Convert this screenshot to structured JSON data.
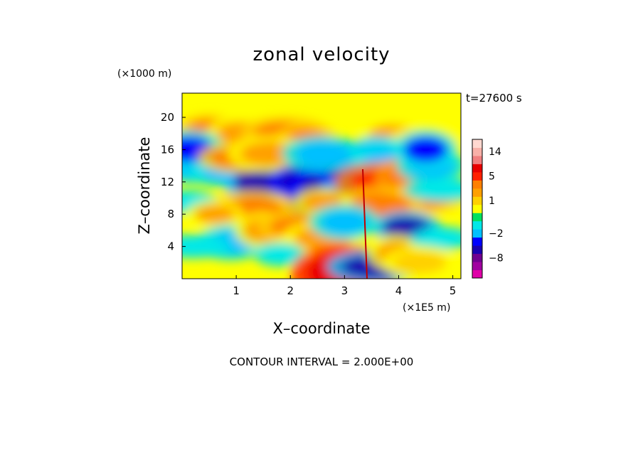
{
  "chart_data": {
    "type": "heatmap",
    "title": "zonal velocity",
    "xlabel": "X–coordinate",
    "ylabel": "Z–coordinate",
    "x_unit_label": "(×1E5 m)",
    "y_unit_label": "(×1000 m)",
    "time_label": "t=27600 s",
    "xlim": [
      0,
      5.15
    ],
    "ylim": [
      0,
      23
    ],
    "x_ticks": [
      1,
      2,
      3,
      4,
      5
    ],
    "y_ticks": [
      4,
      8,
      12,
      16,
      20
    ],
    "contour_interval_text": "CONTOUR INTERVAL = 2.000E+00",
    "colorbar": {
      "tick_labels": [
        "14",
        "5",
        "1",
        "−2",
        "−8"
      ],
      "tick_values": [
        14,
        5,
        1,
        -2,
        -8
      ],
      "levels": [
        {
          "value": -14,
          "color": "#e000a8"
        },
        {
          "value": -11,
          "color": "#a000a0"
        },
        {
          "value": -8,
          "color": "#700090"
        },
        {
          "value": -5,
          "color": "#1a00b0"
        },
        {
          "value": -3,
          "color": "#0000ff"
        },
        {
          "value": -2,
          "color": "#00c0ff"
        },
        {
          "value": -1,
          "color": "#00e8e8"
        },
        {
          "value": 0,
          "color": "#00e060"
        },
        {
          "value": 0.5,
          "color": "#ffff00"
        },
        {
          "value": 1,
          "color": "#ffd000"
        },
        {
          "value": 2,
          "color": "#ffa000"
        },
        {
          "value": 3,
          "color": "#ff8000"
        },
        {
          "value": 5,
          "color": "#ff2000"
        },
        {
          "value": 8,
          "color": "#e80000"
        },
        {
          "value": 11,
          "color": "#f08080"
        },
        {
          "value": 14,
          "color": "#f8b0a8"
        },
        {
          "value": 17,
          "color": "#ffd8d0"
        }
      ]
    },
    "features": [
      {
        "x": 0.5,
        "z": 18.5,
        "u": 3
      },
      {
        "x": 1.1,
        "z": 18.0,
        "u": 2
      },
      {
        "x": 1.9,
        "z": 18.2,
        "u": 3
      },
      {
        "x": 2.3,
        "z": 17.0,
        "u": 3
      },
      {
        "x": 3.9,
        "z": 18.0,
        "u": 2
      },
      {
        "x": 4.5,
        "z": 17.0,
        "u": 1
      },
      {
        "x": 0.2,
        "z": 13.5,
        "u": -2
      },
      {
        "x": 0.1,
        "z": 16.0,
        "u": -3
      },
      {
        "x": 0.9,
        "z": 13.0,
        "u": -2
      },
      {
        "x": 1.4,
        "z": 12.0,
        "u": -4
      },
      {
        "x": 1.0,
        "z": 15.0,
        "u": 3
      },
      {
        "x": 1.6,
        "z": 15.5,
        "u": 2
      },
      {
        "x": 2.3,
        "z": 12.0,
        "u": -5
      },
      {
        "x": 2.75,
        "z": 11.2,
        "u": -5
      },
      {
        "x": 2.9,
        "z": 8.8,
        "u": -6
      },
      {
        "x": 3.1,
        "z": 14.0,
        "u": -5
      },
      {
        "x": 3.25,
        "z": 10.5,
        "u": -4
      },
      {
        "x": 2.6,
        "z": 15.5,
        "u": -2
      },
      {
        "x": 3.6,
        "z": 16.0,
        "u": -2
      },
      {
        "x": 3.8,
        "z": 14.5,
        "u": -2
      },
      {
        "x": 3.8,
        "z": 12.0,
        "u": 6
      },
      {
        "x": 4.2,
        "z": 12.5,
        "u": 4
      },
      {
        "x": 4.5,
        "z": 10.0,
        "u": 3
      },
      {
        "x": 3.65,
        "z": 9.0,
        "u": 3
      },
      {
        "x": 4.15,
        "z": 6.3,
        "u": -4
      },
      {
        "x": 4.6,
        "z": 14.0,
        "u": -2
      },
      {
        "x": 4.8,
        "z": 11.0,
        "u": -1
      },
      {
        "x": 4.5,
        "z": 16.0,
        "u": -3
      },
      {
        "x": 0.1,
        "z": 9.5,
        "u": -1
      },
      {
        "x": 1.3,
        "z": 8.5,
        "u": 3
      },
      {
        "x": 0.6,
        "z": 8.0,
        "u": 2
      },
      {
        "x": 0.9,
        "z": 4.5,
        "u": -2
      },
      {
        "x": 0.2,
        "z": 4.0,
        "u": -1
      },
      {
        "x": 1.5,
        "z": 6.0,
        "u": 2
      },
      {
        "x": 2.1,
        "z": 6.5,
        "u": 3
      },
      {
        "x": 2.6,
        "z": 5.0,
        "u": 2
      },
      {
        "x": 1.8,
        "z": 3.0,
        "u": -1
      },
      {
        "x": 3.0,
        "z": 0.8,
        "u": 8
      },
      {
        "x": 3.55,
        "z": 1.5,
        "u": -4
      },
      {
        "x": 3.95,
        "z": 3.2,
        "u": 2
      },
      {
        "x": 4.8,
        "z": 5.0,
        "u": -1
      },
      {
        "x": 4.4,
        "z": 2.0,
        "u": 1
      },
      {
        "x": 2.6,
        "z": 9.5,
        "u": 2
      },
      {
        "x": 3.0,
        "z": 7.0,
        "u": -2
      }
    ]
  }
}
